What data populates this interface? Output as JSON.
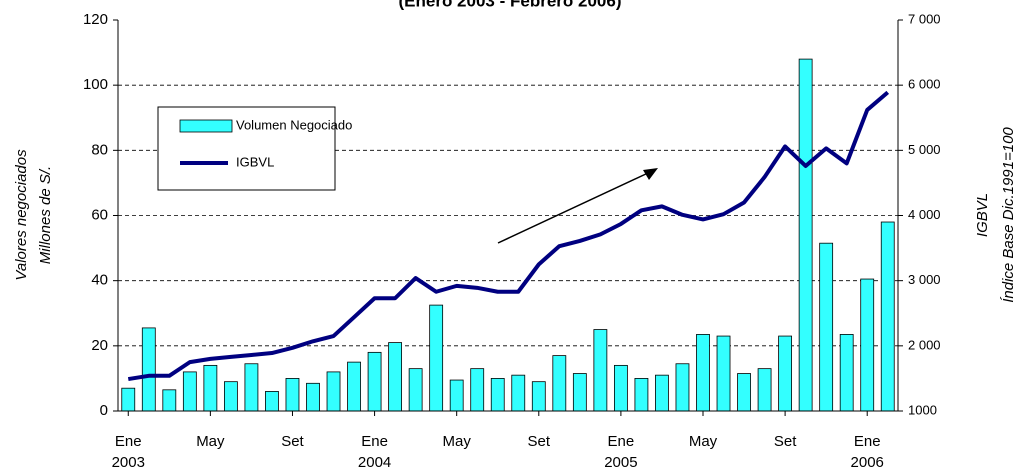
{
  "chart_data": {
    "type": "bar_line",
    "title": "(Enero 2003 - Febrero 2006)",
    "categories": [
      "Ene",
      null,
      null,
      null,
      "May",
      null,
      null,
      null,
      "Set",
      null,
      null,
      null,
      "Ene",
      null,
      null,
      null,
      "May",
      null,
      null,
      null,
      "Set",
      null,
      null,
      null,
      "Ene",
      null,
      null,
      null,
      "May",
      null,
      null,
      null,
      "Set",
      null,
      null,
      null,
      "Ene",
      null
    ],
    "category_groups": [
      "2003",
      "2004",
      "2005",
      "2006"
    ],
    "ylabel": [
      "Valores negociados",
      "Millones de S/."
    ],
    "y2label": [
      "IGBVL",
      "Índice Base Dic.1991=100"
    ],
    "series": [
      {
        "name": "Volumen Negociado",
        "color": "#33ffff",
        "values": [
          7,
          25.5,
          6.5,
          12,
          14,
          9,
          14.5,
          6,
          10,
          8.5,
          12,
          15,
          18,
          21,
          13,
          32.5,
          9.5,
          13,
          10,
          11,
          9,
          17,
          11.5,
          25,
          14,
          10,
          11,
          14.5,
          23.5,
          23,
          11.5,
          13,
          23,
          108,
          51.5,
          23.5,
          40.5,
          58
        ]
      },
      {
        "name": "IGBVL",
        "color": "#000080",
        "axis": "y2",
        "values": [
          1490,
          1540,
          1540,
          1750,
          1800,
          1830,
          1860,
          1890,
          1970,
          2070,
          2150,
          2440,
          2730,
          2730,
          3040,
          2830,
          2920,
          2890,
          2830,
          2830,
          3250,
          3530,
          3610,
          3710,
          3870,
          4080,
          4140,
          4010,
          3940,
          4020,
          4200,
          4590,
          5060,
          4760,
          5030,
          4800,
          5620,
          5890
        ]
      }
    ],
    "ylim": [
      0,
      120
    ],
    "yticks": [
      0,
      20,
      40,
      60,
      80,
      100,
      120
    ],
    "y2lim": [
      1000,
      7000
    ],
    "y2ticks": [
      1000,
      {
        "value": 2000,
        "label": "2 000"
      },
      {
        "value": 3000,
        "label": "3 000"
      },
      {
        "value": 4000,
        "label": "4 000"
      },
      {
        "value": 5000,
        "label": "5 000"
      },
      {
        "value": 6000,
        "label": "6 000"
      },
      {
        "value": 7000,
        "label": "7 000"
      }
    ],
    "grid": true
  }
}
